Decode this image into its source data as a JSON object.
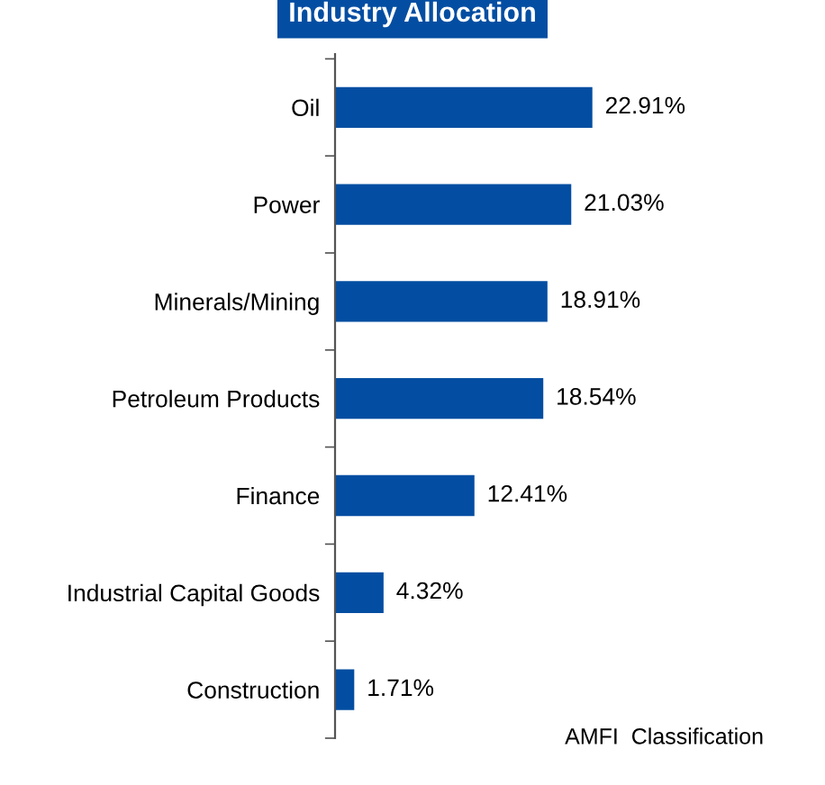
{
  "chart_data": {
    "type": "bar",
    "orientation": "horizontal",
    "title": "Industry Allocation",
    "categories": [
      "Oil",
      "Power",
      "Minerals/Mining",
      "Petroleum Products",
      "Finance",
      "Industrial Capital Goods",
      "Construction"
    ],
    "values": [
      22.91,
      21.03,
      18.91,
      18.54,
      12.41,
      4.32,
      1.71
    ],
    "value_labels": [
      "22.91%",
      "21.03%",
      "18.91%",
      "18.54%",
      "12.41%",
      "4.32%",
      "1.71%"
    ],
    "color": "#034ea2",
    "grid": false,
    "legend": false,
    "annotations": [
      "AMFI  Classification"
    ]
  }
}
